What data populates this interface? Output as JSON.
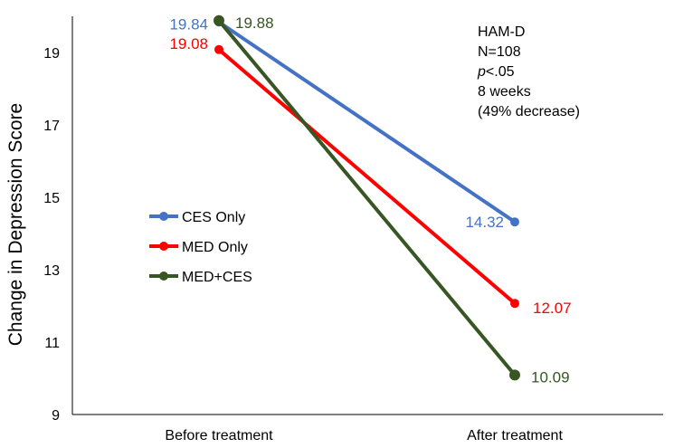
{
  "chart_data": {
    "type": "line",
    "title": "",
    "xlabel": "",
    "ylabel": "Change in Depression Score",
    "categories": [
      "Before treatment",
      "After treatment"
    ],
    "ylim": [
      9,
      20
    ],
    "yticks": [
      9,
      11,
      13,
      15,
      17,
      19
    ],
    "grid": false,
    "legend_position": "center-left",
    "series": [
      {
        "name": "CES Only",
        "color": "#4472C4",
        "values": [
          19.84,
          14.32
        ],
        "labels": [
          "19.84",
          "14.32"
        ]
      },
      {
        "name": "MED Only",
        "color": "#FF0000",
        "values": [
          19.08,
          12.07
        ],
        "labels": [
          "19.08",
          "12.07"
        ]
      },
      {
        "name": "MED+CES",
        "color": "#375623",
        "values": [
          19.88,
          10.09
        ],
        "labels": [
          "19.88",
          "10.09"
        ]
      }
    ],
    "annotation": {
      "line1": "HAM-D",
      "line2": "N=108",
      "p_italic": "p",
      "p_rest": "<.05",
      "line4": "8 weeks",
      "line5": "(49% decrease)"
    }
  }
}
